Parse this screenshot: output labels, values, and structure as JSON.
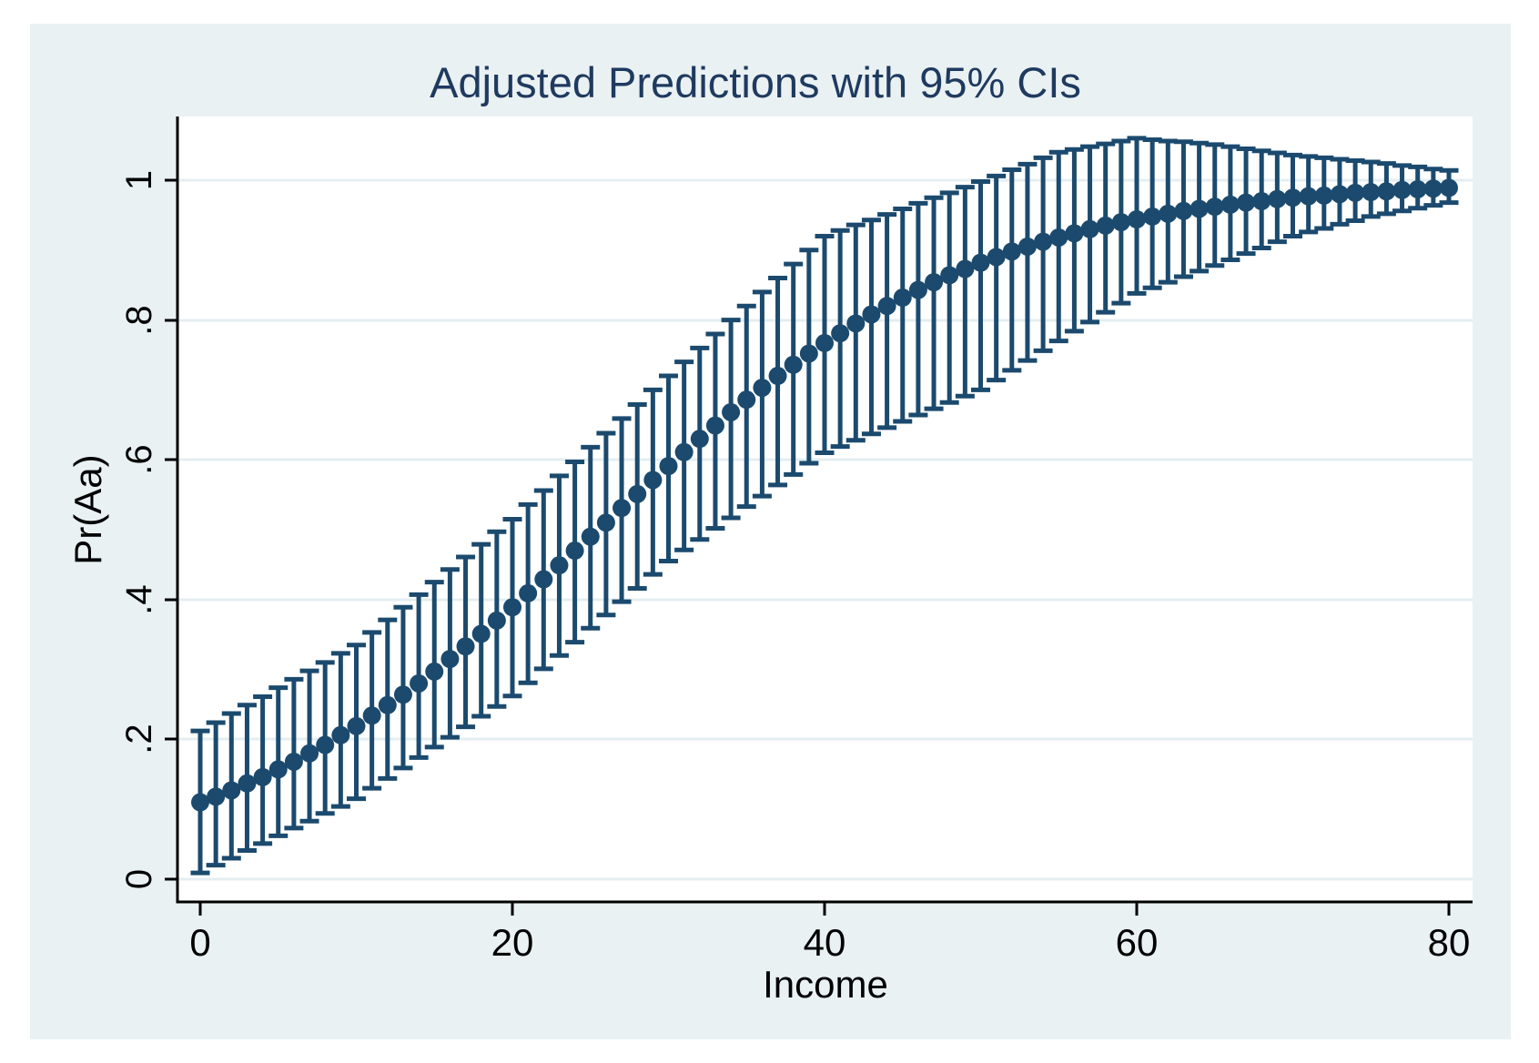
{
  "title": "Adjusted Predictions with 95% CIs",
  "ci_level": "95%",
  "colors": {
    "marker": "#1b4a6e",
    "ci_bar": "#1b4a6e",
    "title_text": "#1f3a5f",
    "axis_text": "#000000",
    "graph_background": "#eaf1f3",
    "plot_background": "#ffffff",
    "gridline": "#e4eef1",
    "axis_line": "#000000"
  },
  "axes": {
    "x": {
      "title": "Income",
      "tick_labels": [
        "0",
        "20",
        "40",
        "60",
        "80"
      ],
      "tick_values": [
        0,
        20,
        40,
        60,
        80
      ]
    },
    "y": {
      "title": "Pr(Aa)",
      "tick_labels": [
        "0",
        ".2",
        ".4",
        ".6",
        ".8",
        "1"
      ],
      "tick_values": [
        0,
        0.2,
        0.4,
        0.6,
        0.8,
        1
      ]
    }
  },
  "chart_data": {
    "type": "scatter",
    "subtype": "point-estimates-with-error-bars",
    "title": "Adjusted Predictions with 95% CIs",
    "xlabel": "Income",
    "ylabel": "Pr(Aa)",
    "xlim": [
      -1.5,
      83
    ],
    "ylim": [
      -0.033,
      1.091
    ],
    "grid": "horizontal-only",
    "legend": "none",
    "x": [
      0,
      1,
      2,
      3,
      4,
      5,
      6,
      7,
      8,
      9,
      10,
      11,
      12,
      13,
      14,
      15,
      16,
      17,
      18,
      19,
      20,
      21,
      22,
      23,
      24,
      25,
      26,
      27,
      28,
      29,
      30,
      31,
      32,
      33,
      34,
      35,
      36,
      37,
      38,
      39,
      40,
      41,
      42,
      43,
      44,
      45,
      46,
      47,
      48,
      49,
      50,
      51,
      52,
      53,
      54,
      55,
      56,
      57,
      58,
      59,
      60,
      61,
      62,
      63,
      64,
      65,
      66,
      67,
      68,
      69,
      70,
      71,
      72,
      73,
      74,
      75,
      76,
      77,
      78,
      79,
      80
    ],
    "predicted": [
      0.11,
      0.118,
      0.127,
      0.137,
      0.146,
      0.157,
      0.168,
      0.18,
      0.192,
      0.206,
      0.219,
      0.234,
      0.249,
      0.264,
      0.28,
      0.297,
      0.315,
      0.333,
      0.351,
      0.37,
      0.389,
      0.409,
      0.429,
      0.449,
      0.47,
      0.49,
      0.51,
      0.531,
      0.551,
      0.571,
      0.591,
      0.611,
      0.63,
      0.649,
      0.668,
      0.686,
      0.703,
      0.72,
      0.736,
      0.752,
      0.767,
      0.781,
      0.795,
      0.808,
      0.82,
      0.832,
      0.843,
      0.854,
      0.864,
      0.873,
      0.882,
      0.89,
      0.898,
      0.905,
      0.912,
      0.918,
      0.924,
      0.93,
      0.935,
      0.94,
      0.944,
      0.948,
      0.952,
      0.956,
      0.959,
      0.962,
      0.965,
      0.968,
      0.97,
      0.973,
      0.975,
      0.977,
      0.978,
      0.98,
      0.982,
      0.983,
      0.984,
      0.986,
      0.987,
      0.988,
      0.989
    ],
    "ci_lower": [
      0.009,
      0.02,
      0.03,
      0.041,
      0.051,
      0.062,
      0.073,
      0.083,
      0.094,
      0.104,
      0.115,
      0.13,
      0.144,
      0.159,
      0.174,
      0.189,
      0.203,
      0.218,
      0.233,
      0.247,
      0.262,
      0.281,
      0.301,
      0.32,
      0.339,
      0.359,
      0.378,
      0.397,
      0.416,
      0.436,
      0.455,
      0.471,
      0.486,
      0.502,
      0.517,
      0.533,
      0.548,
      0.564,
      0.579,
      0.595,
      0.61,
      0.619,
      0.628,
      0.637,
      0.646,
      0.655,
      0.664,
      0.673,
      0.682,
      0.691,
      0.7,
      0.714,
      0.728,
      0.742,
      0.756,
      0.77,
      0.784,
      0.797,
      0.811,
      0.824,
      0.838,
      0.846,
      0.854,
      0.862,
      0.87,
      0.878,
      0.886,
      0.895,
      0.903,
      0.912,
      0.92,
      0.926,
      0.931,
      0.937,
      0.942,
      0.948,
      0.952,
      0.956,
      0.96,
      0.964,
      0.968
    ],
    "ci_upper": [
      0.212,
      0.224,
      0.237,
      0.249,
      0.261,
      0.274,
      0.286,
      0.298,
      0.31,
      0.323,
      0.335,
      0.353,
      0.371,
      0.389,
      0.407,
      0.425,
      0.443,
      0.461,
      0.479,
      0.497,
      0.515,
      0.536,
      0.556,
      0.577,
      0.597,
      0.618,
      0.638,
      0.659,
      0.679,
      0.7,
      0.72,
      0.74,
      0.76,
      0.78,
      0.8,
      0.82,
      0.84,
      0.86,
      0.88,
      0.9,
      0.92,
      0.928,
      0.936,
      0.943,
      0.951,
      0.959,
      0.967,
      0.975,
      0.982,
      0.99,
      0.998,
      1.006,
      1.015,
      1.023,
      1.032,
      1.04,
      1.044,
      1.048,
      1.052,
      1.056,
      1.06,
      1.058,
      1.056,
      1.055,
      1.053,
      1.051,
      1.048,
      1.045,
      1.042,
      1.039,
      1.036,
      1.034,
      1.032,
      1.03,
      1.028,
      1.026,
      1.024,
      1.021,
      1.019,
      1.016,
      1.014
    ]
  }
}
